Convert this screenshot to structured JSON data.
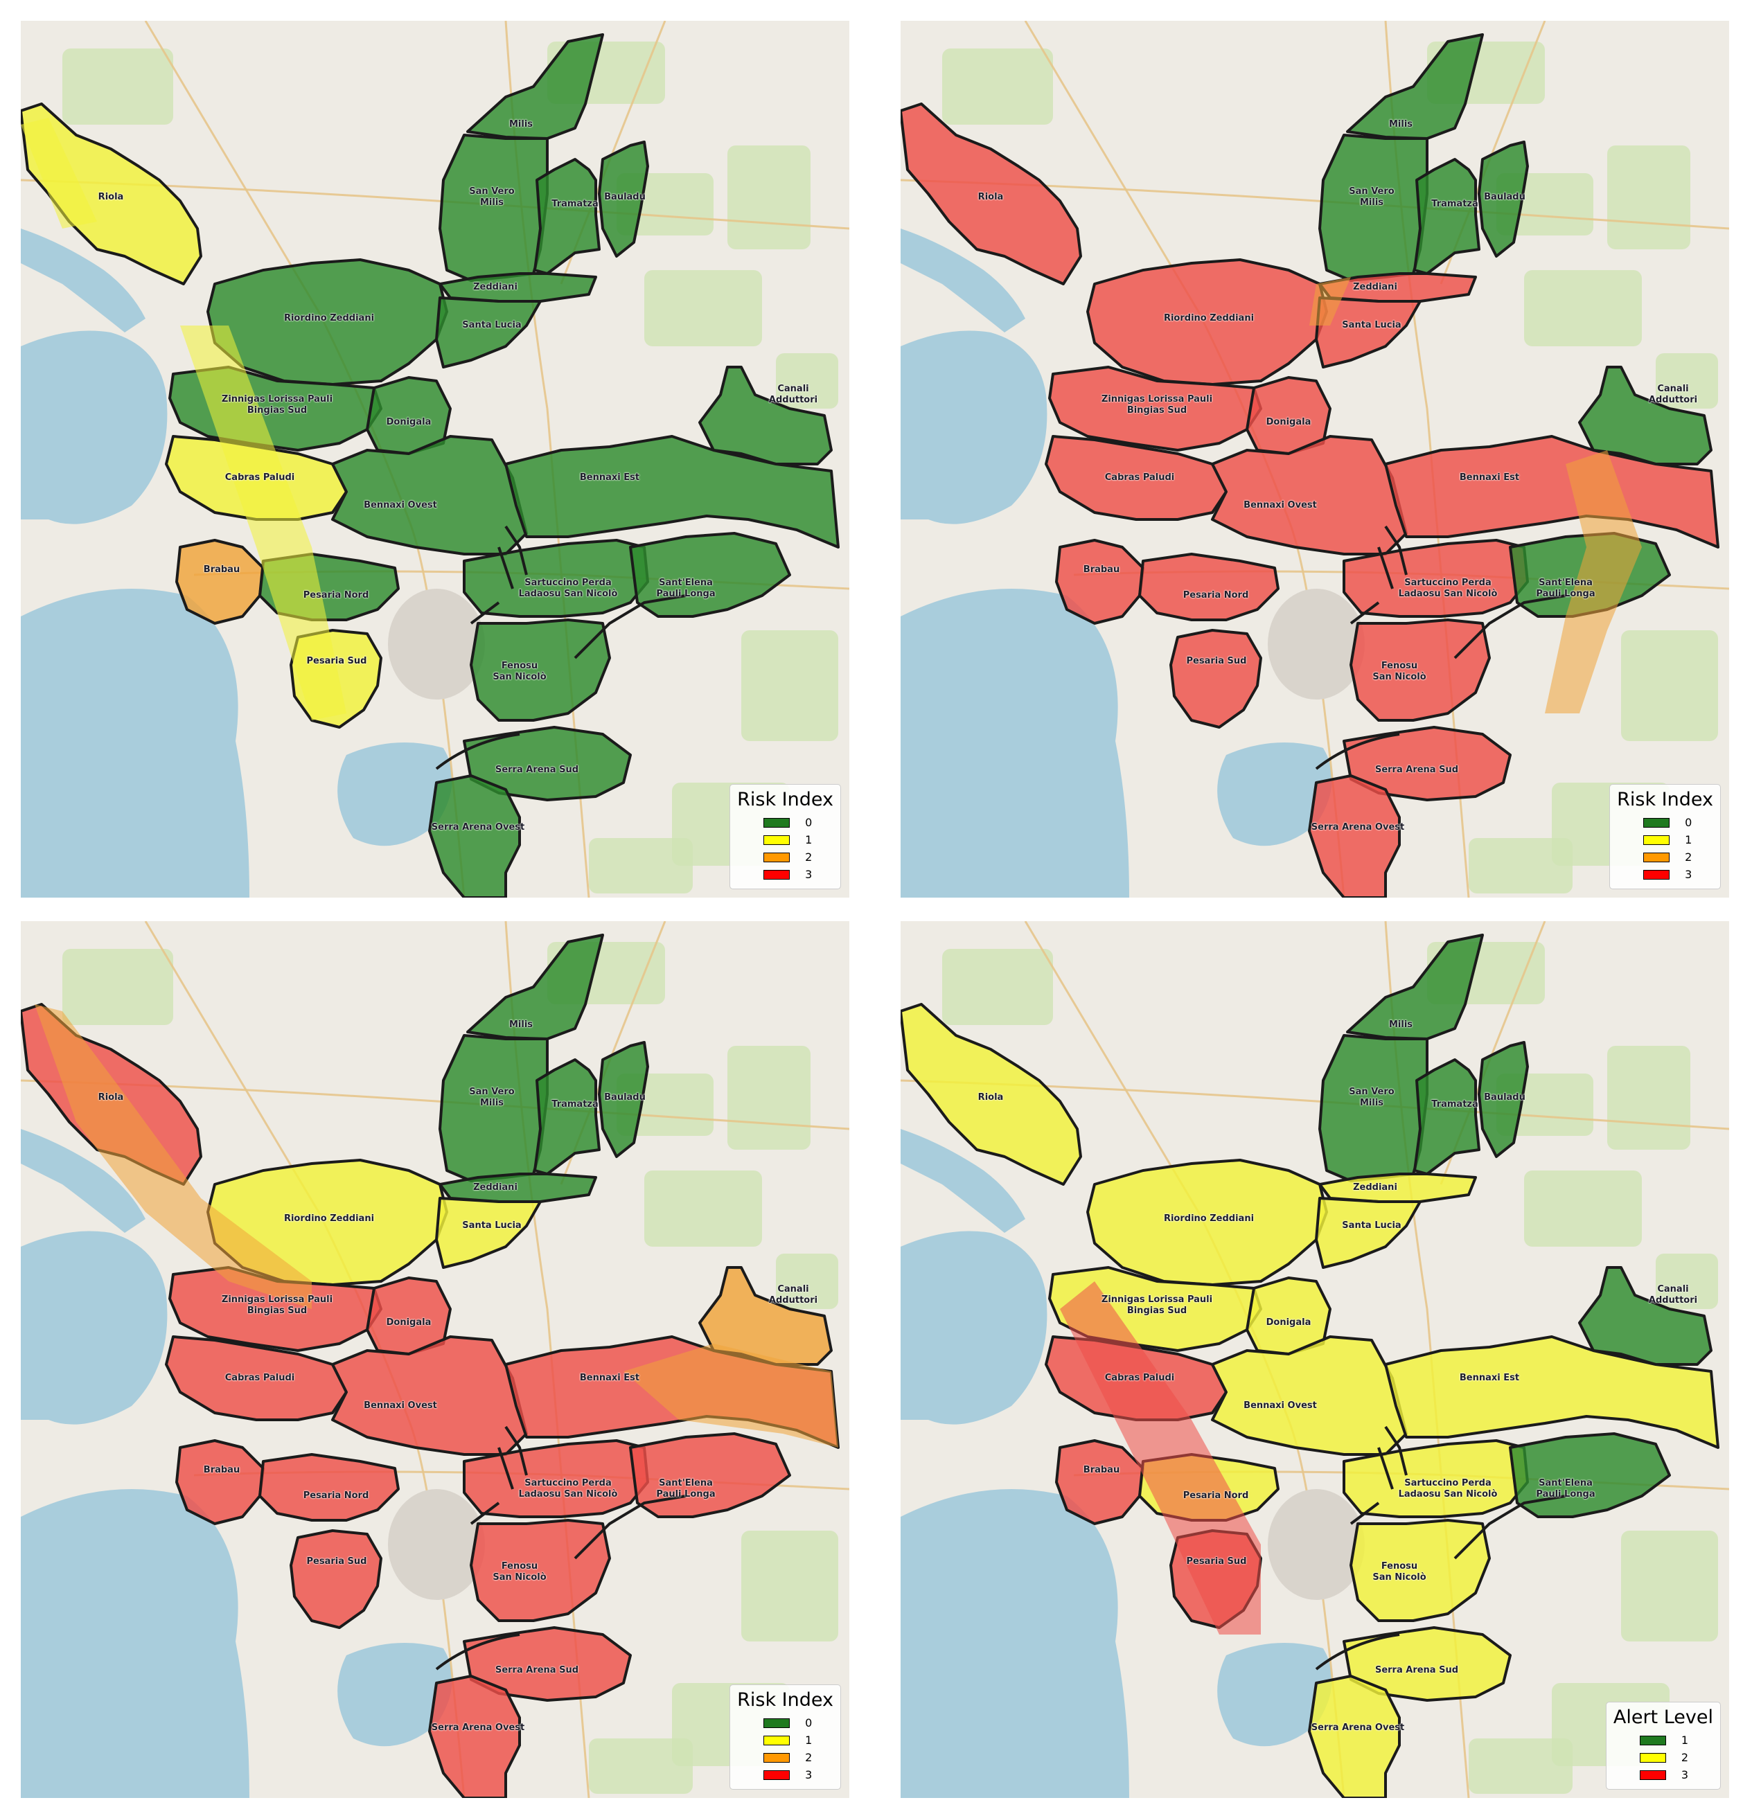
{
  "colors": {
    "green": "#2e8b2e",
    "yellow": "#ffff33",
    "orange": "#f5a623",
    "red": "#ef3e36",
    "sea": "#a9cddc",
    "land": "#eeebe4",
    "field": "#cfe3b4",
    "boundary": "#1b1b1b"
  },
  "zone_labels": [
    {
      "text": "Milis"
    },
    {
      "text": "San Vero\nMilis"
    },
    {
      "text": "Tramatza"
    },
    {
      "text": "Bauladu"
    },
    {
      "text": "Riola"
    },
    {
      "text": "Zeddiani"
    },
    {
      "text": "Riordino Zeddiani"
    },
    {
      "text": "Santa Lucia"
    },
    {
      "text": "Zinnigas Lorissa Pauli\nBingias Sud"
    },
    {
      "text": "Donigala"
    },
    {
      "text": "Canali\nAdduttori"
    },
    {
      "text": "Cabras Paludi"
    },
    {
      "text": "Bennaxi Ovest"
    },
    {
      "text": "Bennaxi Est"
    },
    {
      "text": "Brabau"
    },
    {
      "text": "Pesaria Nord"
    },
    {
      "text": "Sartuccino Perda\nLadaosu San Nicolò"
    },
    {
      "text": "Sant'Elena\nPauli Longa"
    },
    {
      "text": "Pesaria Sud"
    },
    {
      "text": "Fenosu\nSan Nicolò"
    },
    {
      "text": "Serra Arena Sud"
    },
    {
      "text": "Serra Arena Ovest"
    }
  ],
  "panels": [
    {
      "name": "top-left",
      "legend_title": "Risk Index",
      "legend": [
        {
          "label": "0",
          "color": "#1f7a1f"
        },
        {
          "label": "1",
          "color": "#ffff00"
        },
        {
          "label": "2",
          "color": "#ff9900"
        },
        {
          "label": "3",
          "color": "#ff0000"
        }
      ],
      "zone_values": {
        "Riola": "1",
        "Cabras Paludi": "1",
        "Brabau": "2",
        "Pesaria Sud": "1",
        "default": "0"
      }
    },
    {
      "name": "top-right",
      "legend_title": "Risk Index",
      "legend": [
        {
          "label": "0",
          "color": "#1f7a1f"
        },
        {
          "label": "1",
          "color": "#ffff00"
        },
        {
          "label": "2",
          "color": "#ff9900"
        },
        {
          "label": "3",
          "color": "#ff0000"
        }
      ],
      "zone_values": {
        "Milis": "0",
        "San Vero Milis": "0",
        "Tramatza": "0",
        "Bauladu": "0",
        "Canali Adduttori": "0",
        "Sant'Elena Pauli Longa": "0",
        "default": "3"
      }
    },
    {
      "name": "bottom-left",
      "legend_title": "Risk Index",
      "legend": [
        {
          "label": "0",
          "color": "#1f7a1f"
        },
        {
          "label": "1",
          "color": "#ffff00"
        },
        {
          "label": "2",
          "color": "#ff9900"
        },
        {
          "label": "3",
          "color": "#ff0000"
        }
      ],
      "zone_values": {
        "Milis": "0",
        "San Vero Milis": "0",
        "Tramatza": "0",
        "Bauladu": "0",
        "Zeddiani": "0",
        "Riordino Zeddiani": "1",
        "Santa Lucia": "1",
        "Canali Adduttori": "2",
        "default": "3"
      }
    },
    {
      "name": "bottom-right",
      "legend_title": "Alert Level",
      "legend": [
        {
          "label": "1",
          "color": "#1f7a1f"
        },
        {
          "label": "2",
          "color": "#ffff00"
        },
        {
          "label": "3",
          "color": "#ff0000"
        }
      ],
      "zone_values": {
        "Milis": "1",
        "San Vero Milis": "1",
        "Tramatza": "1",
        "Bauladu": "1",
        "Canali Adduttori": "1",
        "Sant'Elena Pauli Longa": "1",
        "Brabau": "3",
        "Pesaria Sud": "3",
        "Cabras Paludi": "3",
        "default": "2"
      }
    }
  ]
}
